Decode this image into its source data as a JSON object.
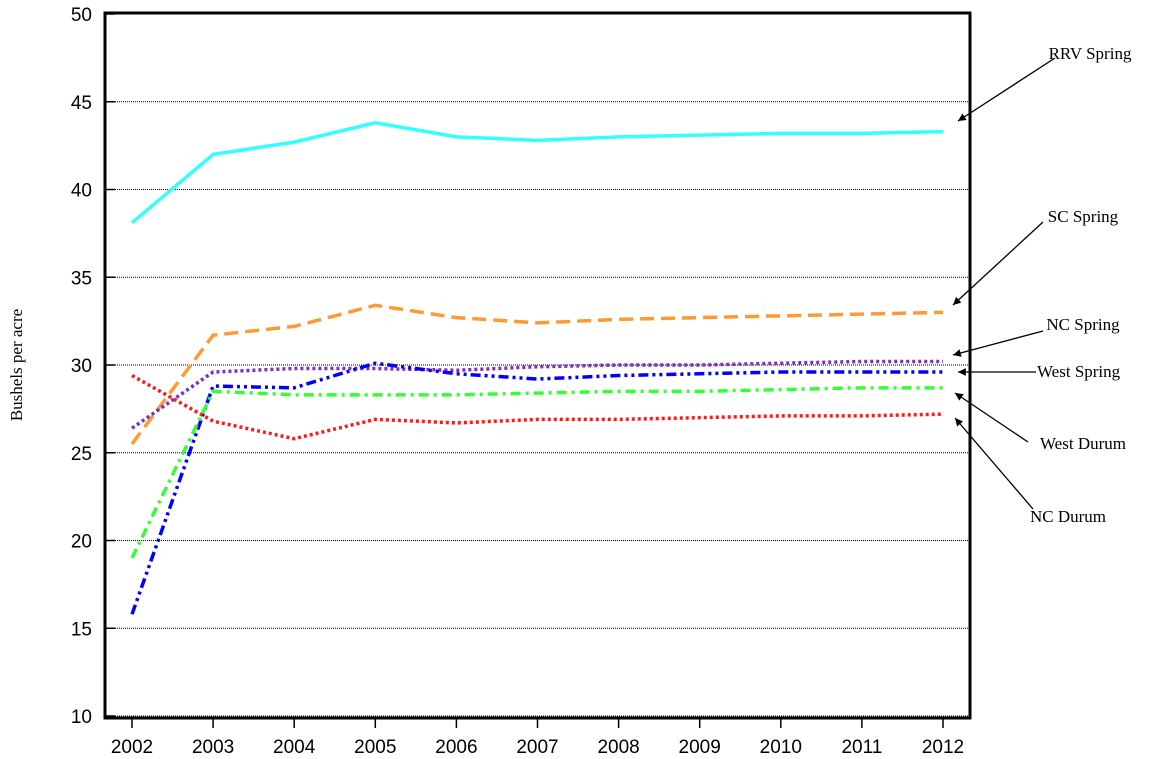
{
  "chart_data": {
    "type": "line",
    "y_label": "Bushels per acre",
    "categories": [
      "2002",
      "2003",
      "2004",
      "2005",
      "2006",
      "2007",
      "2008",
      "2009",
      "2010",
      "2011",
      "2012"
    ],
    "ylim": [
      10,
      50
    ],
    "yticks": [
      10,
      15,
      20,
      25,
      30,
      35,
      40,
      45,
      50
    ],
    "grid": true,
    "series": [
      {
        "name": "RRV Spring",
        "color": "#33ffff",
        "dash": "solid",
        "values": [
          38.1,
          42.0,
          42.7,
          43.8,
          43.0,
          42.8,
          43.0,
          43.1,
          43.2,
          43.2,
          43.3
        ]
      },
      {
        "name": "SC Spring",
        "color": "#ff9933",
        "dash": "dashed",
        "values": [
          25.5,
          31.7,
          32.2,
          33.4,
          32.7,
          32.4,
          32.6,
          32.7,
          32.8,
          32.9,
          33.0
        ]
      },
      {
        "name": "NC Spring",
        "color": "#7f2fbf",
        "dash": "dotted",
        "values": [
          26.4,
          29.6,
          29.8,
          29.8,
          29.7,
          29.9,
          30.0,
          30.0,
          30.1,
          30.2,
          30.2
        ]
      },
      {
        "name": "West Spring",
        "color": "#0000ff",
        "dash": "dash-dot-dot",
        "values": [
          15.8,
          28.8,
          28.7,
          30.1,
          29.5,
          29.2,
          29.4,
          29.5,
          29.6,
          29.6,
          29.6
        ]
      },
      {
        "name": "West Durum",
        "color": "#33ff33",
        "dash": "dash-dot",
        "values": [
          19.0,
          28.5,
          28.3,
          28.3,
          28.3,
          28.4,
          28.5,
          28.5,
          28.6,
          28.7,
          28.7
        ]
      },
      {
        "name": "NC Durum",
        "color": "#ff1a1a",
        "dash": "dotted",
        "values": [
          29.4,
          26.8,
          25.8,
          26.9,
          26.7,
          26.9,
          26.9,
          27.0,
          27.1,
          27.1,
          27.2
        ]
      }
    ]
  }
}
